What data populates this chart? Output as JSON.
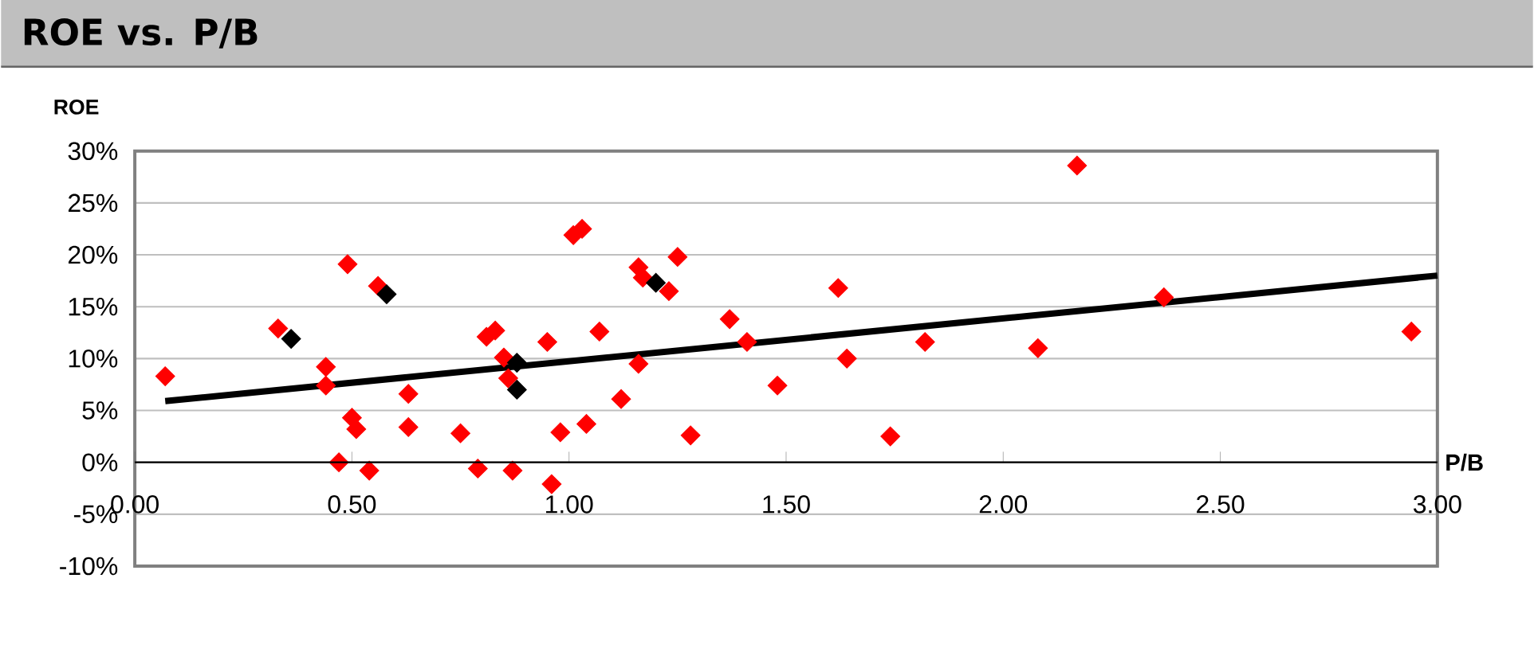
{
  "chart_data": {
    "type": "scatter",
    "title": "ROE vs. P/B",
    "xlabel": "P/B",
    "ylabel": "ROE",
    "xlim": [
      0,
      3
    ],
    "ylim": [
      -10,
      30
    ],
    "xticks": [
      {
        "value": 0,
        "label": "0.00"
      },
      {
        "value": 0.5,
        "label": "0.50"
      },
      {
        "value": 1,
        "label": "1.00"
      },
      {
        "value": 1.5,
        "label": "1.50"
      },
      {
        "value": 2,
        "label": "2.00"
      },
      {
        "value": 2.5,
        "label": "2.50"
      },
      {
        "value": 3,
        "label": "3.00"
      }
    ],
    "yticks": [
      {
        "value": -10,
        "label": "-10%"
      },
      {
        "value": -5,
        "label": "-5%"
      },
      {
        "value": 0,
        "label": "0%"
      },
      {
        "value": 5,
        "label": "5%"
      },
      {
        "value": 10,
        "label": "10%"
      },
      {
        "value": 15,
        "label": "15%"
      },
      {
        "value": 20,
        "label": "20%"
      },
      {
        "value": 25,
        "label": "25%"
      },
      {
        "value": 30,
        "label": "30%"
      }
    ],
    "grid": "y",
    "marker": "diamond",
    "series": [
      {
        "color": "#ff0000",
        "x": [
          0.07,
          0.33,
          0.49,
          0.44,
          0.44,
          0.5,
          0.51,
          0.47,
          0.54,
          0.56,
          0.63,
          0.63,
          0.75,
          0.79,
          0.81,
          0.83,
          0.85,
          0.86,
          0.87,
          0.95,
          0.98,
          0.96,
          1.01,
          1.03,
          1.04,
          1.07,
          1.12,
          1.16,
          1.17,
          1.16,
          1.23,
          1.25,
          1.28,
          1.37,
          1.41,
          1.48,
          1.62,
          1.64,
          1.74,
          1.82,
          2.08,
          2.17,
          2.37,
          2.94
        ],
        "values": [
          8.3,
          12.9,
          19.1,
          9.2,
          7.4,
          4.3,
          3.2,
          0,
          -0.8,
          17.0,
          6.6,
          3.4,
          2.8,
          -0.6,
          12.1,
          12.7,
          10.1,
          8.1,
          -0.8,
          11.6,
          2.9,
          -2.1,
          21.9,
          22.5,
          3.7,
          12.6,
          6.1,
          18.8,
          17.8,
          9.5,
          16.5,
          19.8,
          2.6,
          13.8,
          11.6,
          7.4,
          16.8,
          10.0,
          2.5,
          11.6,
          11.0,
          28.6,
          15.9,
          12.6
        ]
      },
      {
        "color": "#000000",
        "x": [
          0.36,
          0.58,
          0.88,
          0.88,
          1.2
        ],
        "values": [
          11.9,
          16.2,
          9.6,
          7.0,
          17.3
        ]
      },
      {
        "type": "line",
        "color": "#000000",
        "marker": "none",
        "x": [
          0.07,
          3.0
        ],
        "values": [
          5.9,
          18.0
        ]
      }
    ]
  }
}
